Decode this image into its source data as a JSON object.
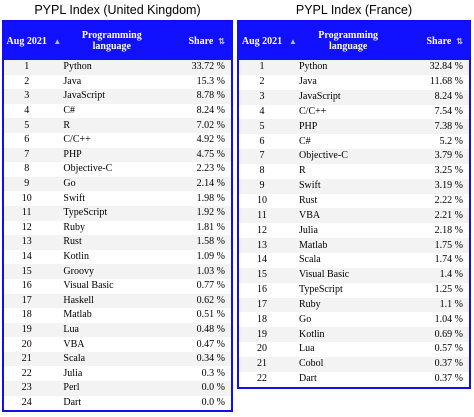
{
  "uk": {
    "title": "PYPL Index (United Kingdom)",
    "headers": {
      "month": "Aug 2021",
      "language": "Programming language",
      "share": "Share"
    },
    "rows": [
      {
        "rank": "1",
        "language": "Python",
        "share": "33.72 %"
      },
      {
        "rank": "2",
        "language": "Java",
        "share": "15.3 %"
      },
      {
        "rank": "3",
        "language": "JavaScript",
        "share": "8.78 %"
      },
      {
        "rank": "4",
        "language": "C#",
        "share": "8.24 %"
      },
      {
        "rank": "5",
        "language": "R",
        "share": "7.02 %"
      },
      {
        "rank": "6",
        "language": "C/C++",
        "share": "4.92 %"
      },
      {
        "rank": "7",
        "language": "PHP",
        "share": "4.75 %"
      },
      {
        "rank": "8",
        "language": "Objective-C",
        "share": "2.23 %"
      },
      {
        "rank": "9",
        "language": "Go",
        "share": "2.14 %"
      },
      {
        "rank": "10",
        "language": "Swift",
        "share": "1.98 %"
      },
      {
        "rank": "11",
        "language": "TypeScript",
        "share": "1.92 %"
      },
      {
        "rank": "12",
        "language": "Ruby",
        "share": "1.81 %"
      },
      {
        "rank": "13",
        "language": "Rust",
        "share": "1.58 %"
      },
      {
        "rank": "14",
        "language": "Kotlin",
        "share": "1.09 %"
      },
      {
        "rank": "15",
        "language": "Groovy",
        "share": "1.03 %"
      },
      {
        "rank": "16",
        "language": "Visual Basic",
        "share": "0.77 %"
      },
      {
        "rank": "17",
        "language": "Haskell",
        "share": "0.62 %"
      },
      {
        "rank": "18",
        "language": "Matlab",
        "share": "0.51 %"
      },
      {
        "rank": "19",
        "language": "Lua",
        "share": "0.48 %"
      },
      {
        "rank": "20",
        "language": "VBA",
        "share": "0.47 %"
      },
      {
        "rank": "21",
        "language": "Scala",
        "share": "0.34 %"
      },
      {
        "rank": "22",
        "language": "Julia",
        "share": "0.3 %"
      },
      {
        "rank": "23",
        "language": "Perl",
        "share": "0.0 %"
      },
      {
        "rank": "24",
        "language": "Dart",
        "share": "0.0 %"
      }
    ]
  },
  "fr": {
    "title": "PYPL Index (France)",
    "headers": {
      "month": "Aug 2021",
      "language": "Programming language",
      "share": "Share"
    },
    "rows": [
      {
        "rank": "1",
        "language": "Python",
        "share": "32.84 %"
      },
      {
        "rank": "2",
        "language": "Java",
        "share": "11.68 %"
      },
      {
        "rank": "3",
        "language": "JavaScript",
        "share": "8.24 %"
      },
      {
        "rank": "4",
        "language": "C/C++",
        "share": "7.54 %"
      },
      {
        "rank": "5",
        "language": "PHP",
        "share": "7.38 %"
      },
      {
        "rank": "6",
        "language": "C#",
        "share": "5.2 %"
      },
      {
        "rank": "7",
        "language": "Objective-C",
        "share": "3.79 %"
      },
      {
        "rank": "8",
        "language": "R",
        "share": "3.25 %"
      },
      {
        "rank": "9",
        "language": "Swift",
        "share": "3.19 %"
      },
      {
        "rank": "10",
        "language": "Rust",
        "share": "2.22 %"
      },
      {
        "rank": "11",
        "language": "VBA",
        "share": "2.21 %"
      },
      {
        "rank": "12",
        "language": "Julia",
        "share": "2.18 %"
      },
      {
        "rank": "13",
        "language": "Matlab",
        "share": "1.75 %"
      },
      {
        "rank": "14",
        "language": "Scala",
        "share": "1.74 %"
      },
      {
        "rank": "15",
        "language": "Visual Basic",
        "share": "1.4 %"
      },
      {
        "rank": "16",
        "language": "TypeScript",
        "share": "1.25 %"
      },
      {
        "rank": "17",
        "language": "Ruby",
        "share": "1.1 %"
      },
      {
        "rank": "18",
        "language": "Go",
        "share": "1.04 %"
      },
      {
        "rank": "19",
        "language": "Kotlin",
        "share": "0.69 %"
      },
      {
        "rank": "20",
        "language": "Lua",
        "share": "0.57 %"
      },
      {
        "rank": "21",
        "language": "Cobol",
        "share": "0.37 %"
      },
      {
        "rank": "22",
        "language": "Dart",
        "share": "0.37 %"
      }
    ]
  },
  "icons": {
    "sort_both": "sort-icon",
    "sort_up": "sort-up-icon"
  },
  "colors": {
    "header_bg": "#1111ff",
    "border": "#1010ee",
    "row_alt": "#f3f3f3"
  }
}
